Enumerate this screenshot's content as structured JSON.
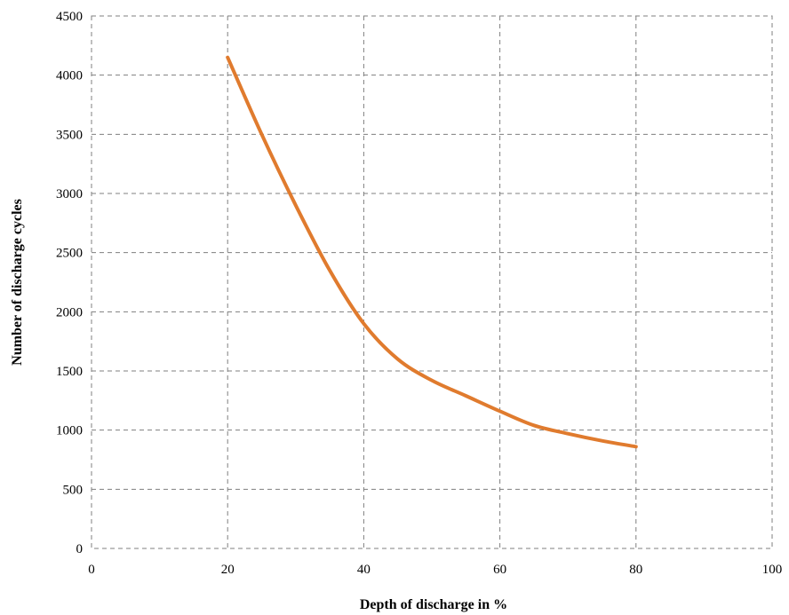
{
  "chart_data": {
    "type": "line",
    "title": "",
    "xlabel": "Depth of discharge in %",
    "ylabel": "Number of discharge cycles",
    "xlim": [
      0,
      100
    ],
    "ylim": [
      0,
      4500
    ],
    "x_ticks": [
      0,
      20,
      40,
      60,
      80,
      100
    ],
    "y_ticks": [
      0,
      500,
      1000,
      1500,
      2000,
      2500,
      3000,
      3500,
      4000,
      4500
    ],
    "grid": true,
    "legend": "none",
    "series": [
      {
        "color": "#e07b2e",
        "x": [
          20,
          25,
          30,
          35,
          40,
          45,
          50,
          55,
          60,
          65,
          70,
          75,
          80
        ],
        "y": [
          4150,
          3500,
          2900,
          2350,
          1900,
          1600,
          1420,
          1290,
          1160,
          1040,
          970,
          910,
          860
        ]
      }
    ]
  }
}
